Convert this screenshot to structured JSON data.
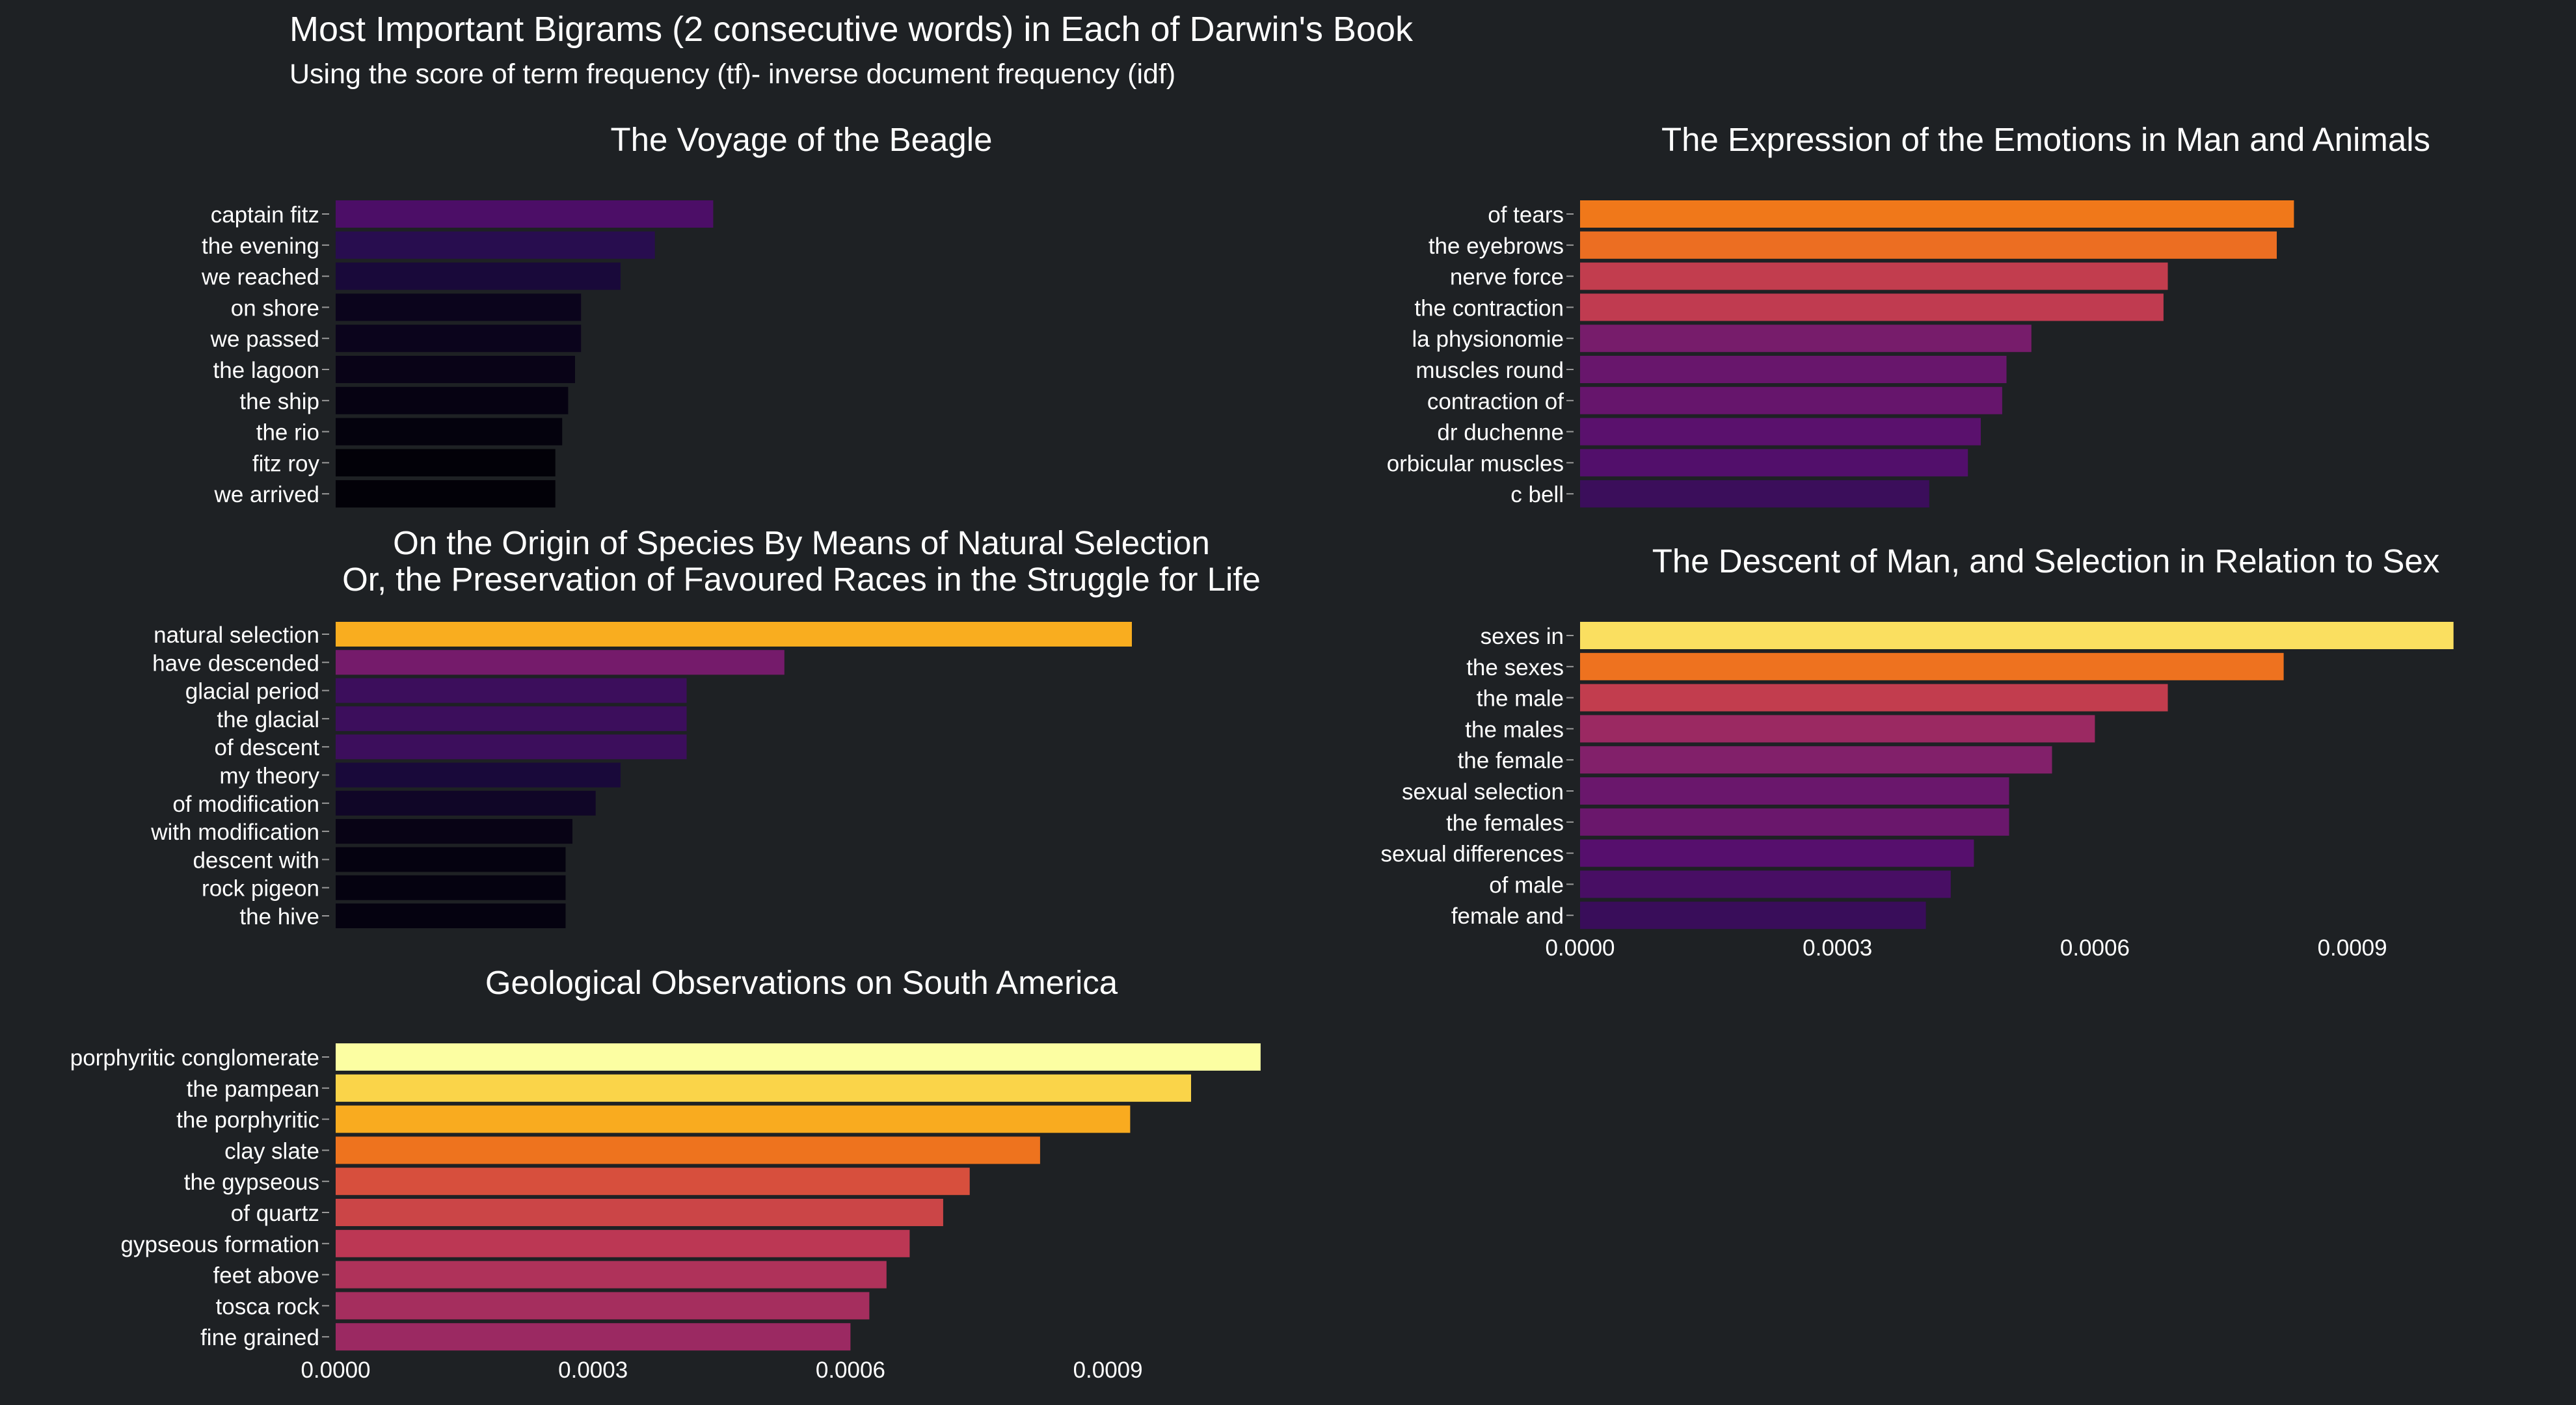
{
  "title": "Most Important Bigrams (2 consecutive words) in Each of Darwin's Book",
  "subtitle": "Using the score of term frequency (tf)- inverse document frequency (idf)",
  "chart_data": [
    {
      "type": "bar",
      "orientation": "horizontal",
      "title": [
        "The Voyage of the Beagle"
      ],
      "categories": [
        "captain fitz",
        "the evening",
        "we reached",
        "on shore",
        "we passed",
        "the lagoon",
        "the ship",
        "the rio",
        "fitz roy",
        "we arrived"
      ],
      "values": [
        0.00044,
        0.000372,
        0.000332,
        0.000286,
        0.000286,
        0.000279,
        0.000271,
        0.000264,
        0.000256,
        0.000256
      ],
      "xlim": [
        0,
        0.00108
      ],
      "xticks": [],
      "grid": false
    },
    {
      "type": "bar",
      "orientation": "horizontal",
      "title": [
        "The Expression of the Emotions in Man and Animals"
      ],
      "categories": [
        "of tears",
        "the eyebrows",
        "nerve force",
        "the contraction",
        "la physionomie",
        "muscles round",
        "contraction of",
        "dr duchenne",
        "orbicular muscles",
        "c bell"
      ],
      "values": [
        0.000832,
        0.000812,
        0.000685,
        0.00068,
        0.000526,
        0.000497,
        0.000492,
        0.000467,
        0.000452,
        0.000407
      ],
      "xlim": [
        0,
        0.00108
      ],
      "xticks": [],
      "grid": false
    },
    {
      "type": "bar",
      "orientation": "horizontal",
      "title": [
        "On the Origin of Species By Means of Natural Selection",
        "Or, the Preservation of Favoured Races in the Struggle for Life"
      ],
      "categories": [
        "natural selection",
        "have descended",
        "glacial period",
        "the glacial",
        "of descent",
        "my theory",
        "of modification",
        "with modification",
        "descent with",
        "rock pigeon",
        "the hive"
      ],
      "values": [
        0.000928,
        0.000523,
        0.000409,
        0.000409,
        0.000409,
        0.000332,
        0.000303,
        0.000276,
        0.000268,
        0.000268,
        0.000268
      ],
      "xlim": [
        0,
        0.00108
      ],
      "xticks": [],
      "grid": false
    },
    {
      "type": "bar",
      "orientation": "horizontal",
      "title": [
        "The Descent of Man, and Selection in Relation to Sex"
      ],
      "categories": [
        "sexes in",
        "the sexes",
        "the male",
        "the males",
        "the female",
        "sexual selection",
        "the females",
        "sexual differences",
        "of male",
        "female and"
      ],
      "values": [
        0.001018,
        0.00082,
        0.000685,
        0.0006,
        0.00055,
        0.0005,
        0.0005,
        0.000459,
        0.000432,
        0.000403
      ],
      "xlim": [
        0,
        0.00108
      ],
      "xticks": [
        "0.0000",
        "0.0003",
        "0.0006",
        "0.0009"
      ],
      "grid": false
    },
    {
      "type": "bar",
      "orientation": "horizontal",
      "title": [
        "Geological Observations on South America"
      ],
      "categories": [
        "porphyritic conglomerate",
        "the pampean",
        "the porphyritic",
        "clay slate",
        "the gypseous",
        "of quartz",
        "gypseous formation",
        "feet above",
        "tosca rock",
        "fine grained"
      ],
      "values": [
        0.001078,
        0.000997,
        0.000926,
        0.000821,
        0.000739,
        0.000708,
        0.000669,
        0.000642,
        0.000622,
        0.0006
      ],
      "xlim": [
        0,
        0.00108
      ],
      "xticks": [
        "0.0000",
        "0.0003",
        "0.0006",
        "0.0009"
      ],
      "grid": false
    }
  ],
  "colors": {
    "background": "#1e2124",
    "text": "#ffffff",
    "palette": "inferno"
  }
}
